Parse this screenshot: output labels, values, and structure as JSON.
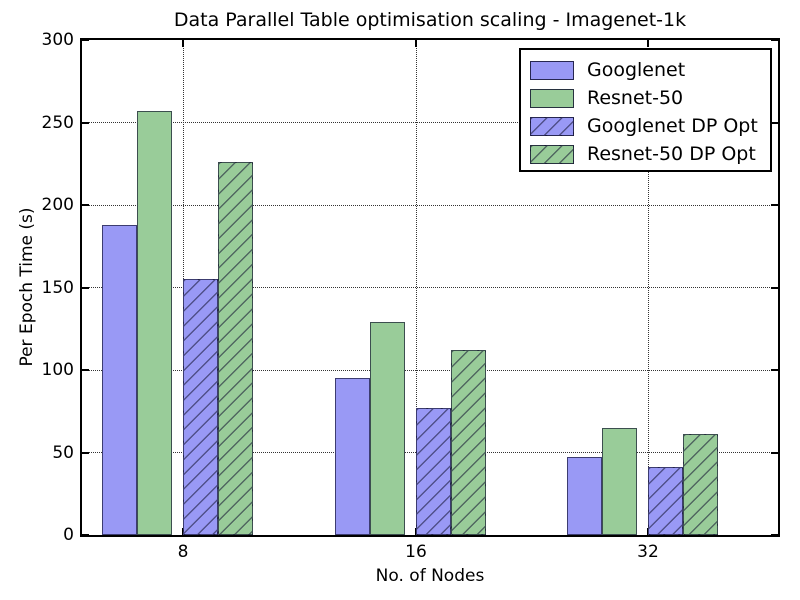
{
  "chart_data": {
    "type": "bar",
    "title": "Data Parallel Table optimisation scaling - Imagenet-1k",
    "xlabel": "No. of Nodes",
    "ylabel": "Per Epoch Time (s)",
    "categories": [
      "8",
      "16",
      "32"
    ],
    "series": [
      {
        "name": "Googlenet",
        "values": [
          188,
          95,
          47
        ],
        "color": "#9999f5",
        "hatch": false
      },
      {
        "name": "Resnet-50",
        "values": [
          257,
          129,
          65
        ],
        "color": "#99cc99",
        "hatch": false
      },
      {
        "name": "Googlenet DP Opt",
        "values": [
          155,
          77,
          41
        ],
        "color": "#9999f5",
        "hatch": true
      },
      {
        "name": "Resnet-50 DP Opt",
        "values": [
          226,
          112,
          61
        ],
        "color": "#99cc99",
        "hatch": true
      }
    ],
    "ylim": [
      0,
      300
    ],
    "yticks": [
      0,
      50,
      100,
      150,
      200,
      250,
      300
    ],
    "grid": true,
    "legend_position": "upper right",
    "colors": {
      "bar_blue": "#9999f5",
      "bar_green": "#99cc99",
      "bar_edge": "#2a2a48",
      "grid": "#333333",
      "text": "#000000",
      "background": "#ffffff"
    }
  }
}
